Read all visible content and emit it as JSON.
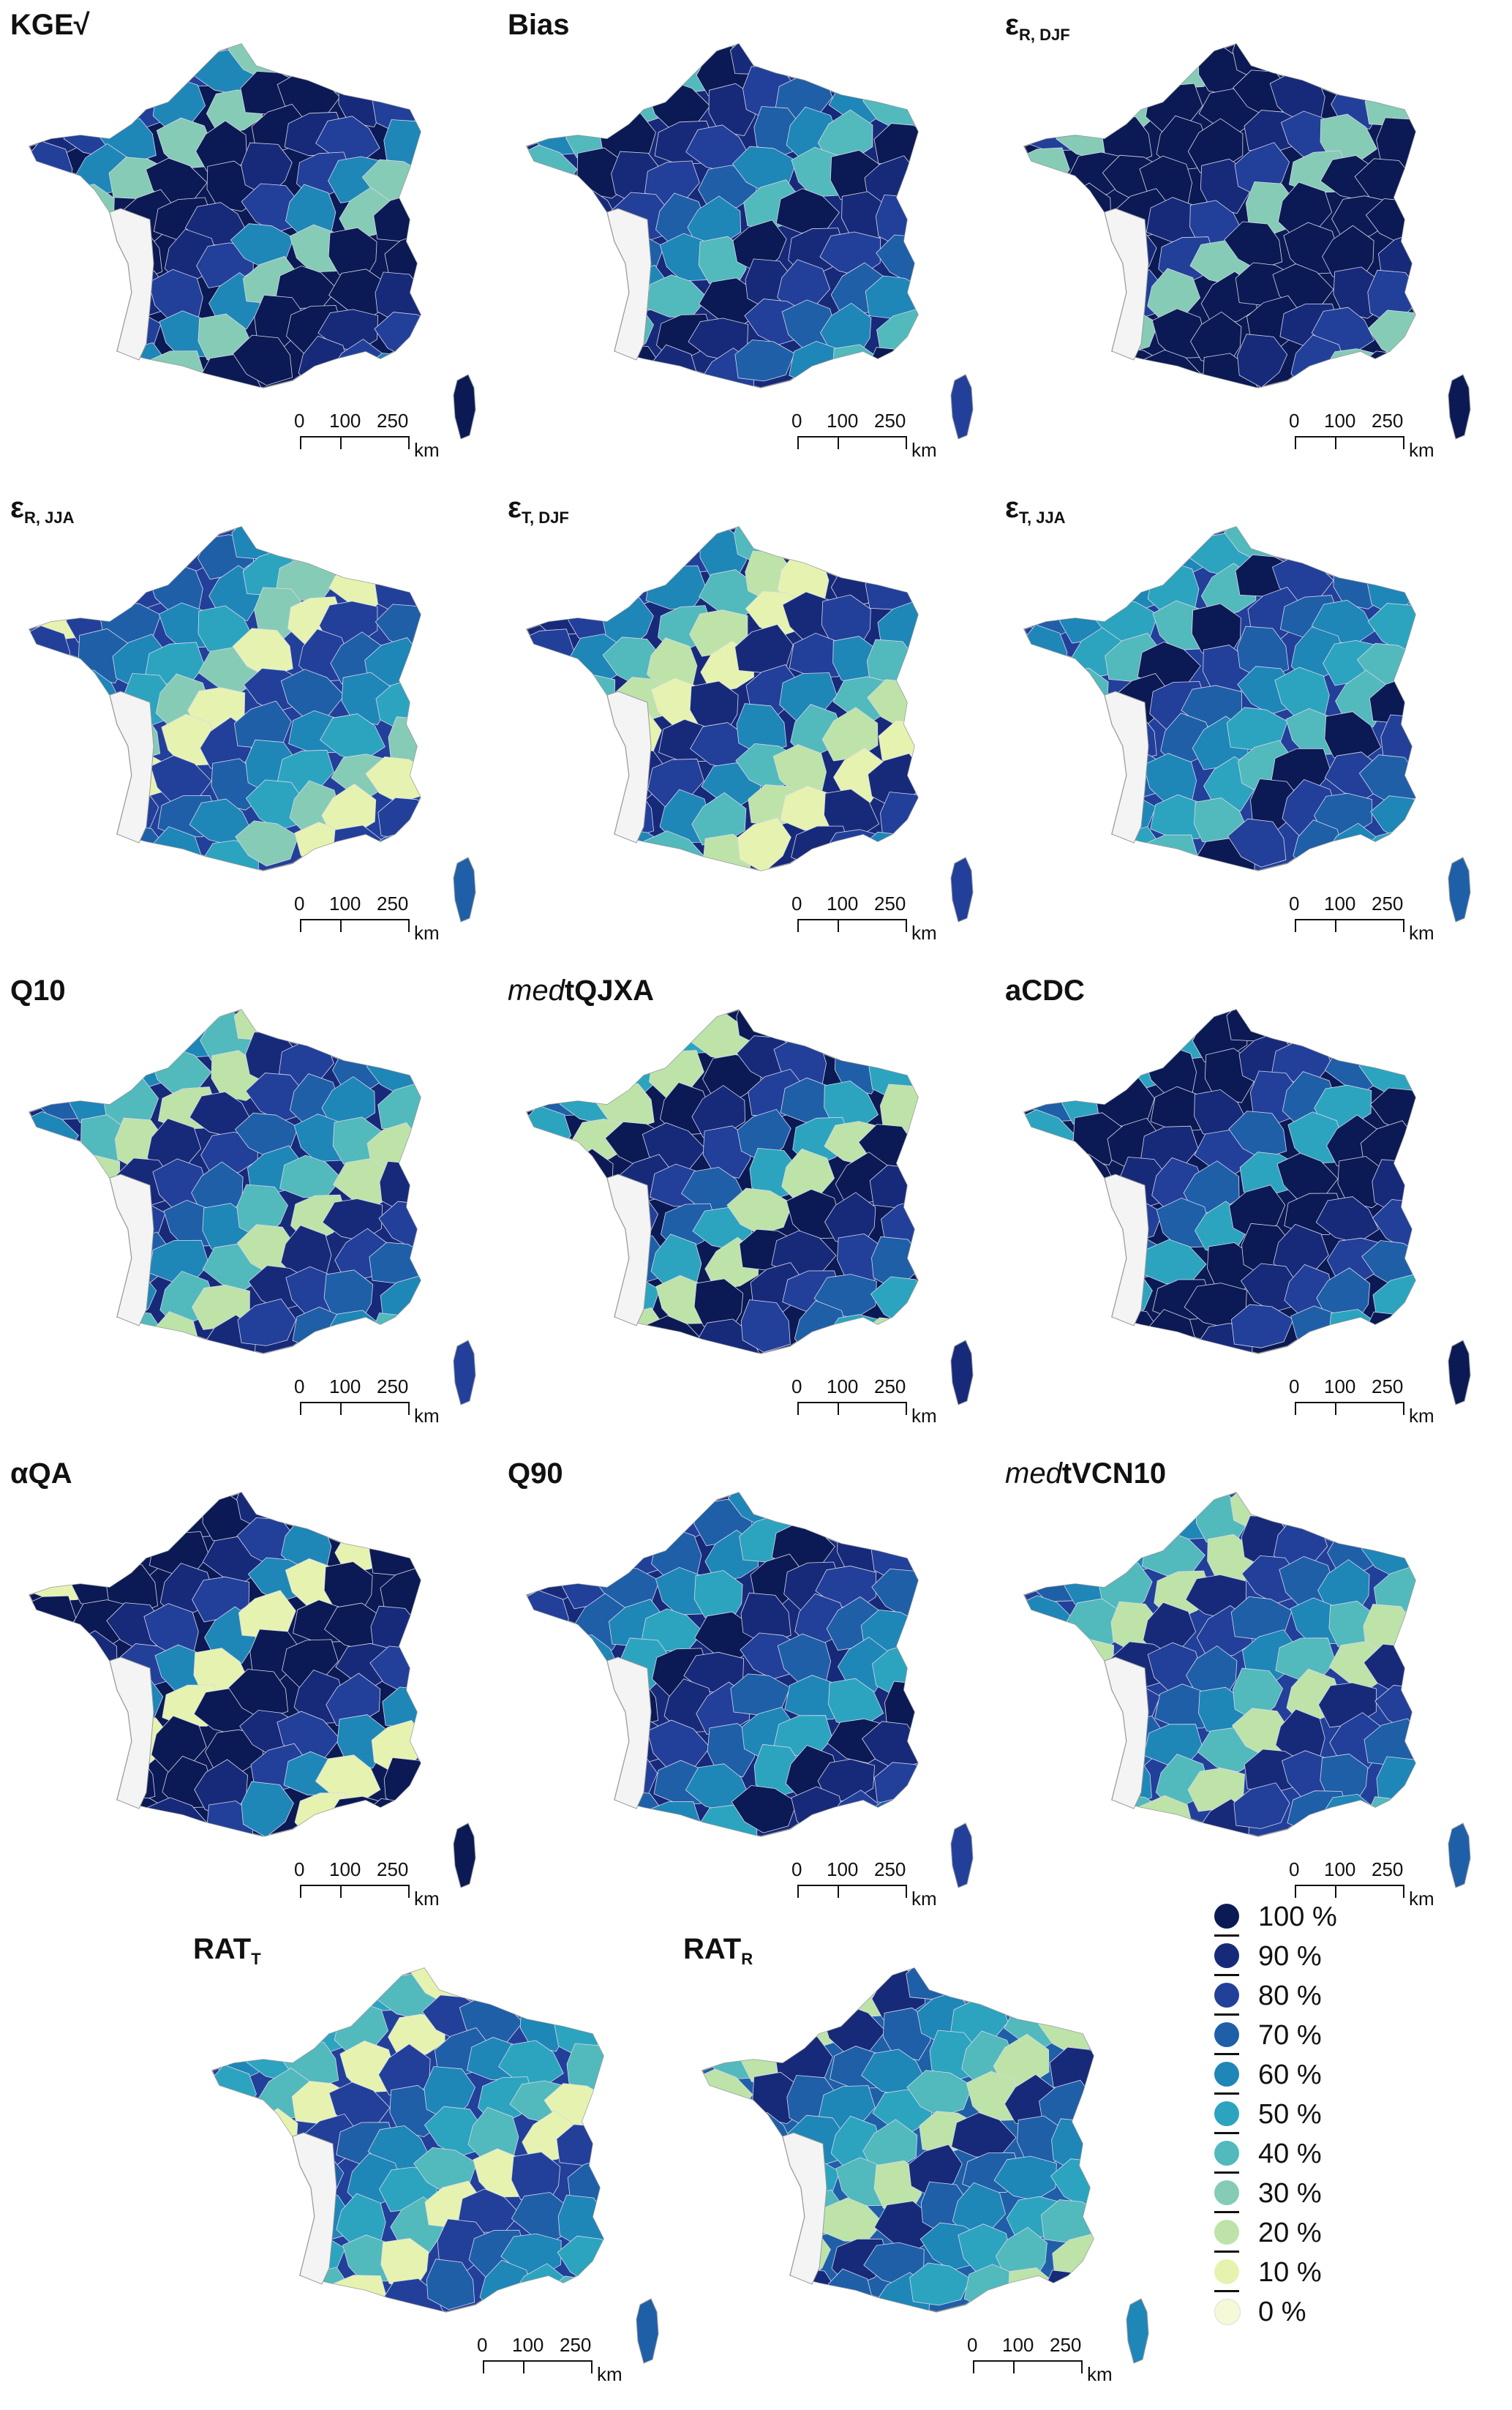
{
  "colors": {
    "c100": "#0b1a55",
    "c90": "#172a7a",
    "c80": "#22409a",
    "c70": "#1f5fa8",
    "c60": "#1f86b8",
    "c50": "#2ca4bf",
    "c40": "#52b9bd",
    "c30": "#86cbb6",
    "c20": "#bde3a9",
    "c10": "#e6f3b0",
    "c0": "#f5f9d8",
    "land": "#f4f4f4",
    "border": "#9a9a9a"
  },
  "panels": [
    {
      "id": "kge",
      "title": "KGE√",
      "title_italic": "",
      "title_sub": "",
      "palette": [
        "c100",
        "c100",
        "c90",
        "c80",
        "c60",
        "c30"
      ]
    },
    {
      "id": "bias",
      "title": "Bias",
      "title_italic": "",
      "title_sub": "",
      "palette": [
        "c90",
        "c80",
        "c70",
        "c60",
        "c40",
        "c100"
      ]
    },
    {
      "id": "erdjf",
      "title": "ε",
      "title_italic": "",
      "title_sub": "R, DJF",
      "palette": [
        "c100",
        "c100",
        "c100",
        "c90",
        "c80",
        "c30"
      ]
    },
    {
      "id": "erjja",
      "title": "ε",
      "title_italic": "",
      "title_sub": "R, JJA",
      "palette": [
        "c80",
        "c70",
        "c60",
        "c50",
        "c30",
        "c10"
      ]
    },
    {
      "id": "etdjf",
      "title": "ε",
      "title_italic": "",
      "title_sub": "T, DJF",
      "palette": [
        "c90",
        "c80",
        "c60",
        "c40",
        "c20",
        "c10"
      ]
    },
    {
      "id": "etjja",
      "title": "ε",
      "title_italic": "",
      "title_sub": "T, JJA",
      "palette": [
        "c80",
        "c70",
        "c60",
        "c50",
        "c40",
        "c100"
      ]
    },
    {
      "id": "q10",
      "title": "Q10",
      "title_italic": "",
      "title_sub": "",
      "palette": [
        "c90",
        "c80",
        "c70",
        "c60",
        "c40",
        "c20"
      ]
    },
    {
      "id": "medtqjxa",
      "title": "tQJXA",
      "title_italic": "med",
      "title_sub": "",
      "palette": [
        "c100",
        "c90",
        "c80",
        "c70",
        "c50",
        "c20"
      ]
    },
    {
      "id": "acdc",
      "title": "aCDC",
      "title_italic": "",
      "title_sub": "",
      "palette": [
        "c100",
        "c100",
        "c90",
        "c80",
        "c70",
        "c50"
      ]
    },
    {
      "id": "aqa",
      "title": "αQA",
      "title_italic": "",
      "title_sub": "",
      "palette": [
        "c100",
        "c100",
        "c90",
        "c80",
        "c60",
        "c10"
      ]
    },
    {
      "id": "q90",
      "title": "Q90",
      "title_italic": "",
      "title_sub": "",
      "palette": [
        "c90",
        "c80",
        "c70",
        "c60",
        "c50",
        "c100"
      ]
    },
    {
      "id": "medtvcn10",
      "title": "tVCN10",
      "title_italic": "med",
      "title_sub": "",
      "palette": [
        "c80",
        "c70",
        "c60",
        "c40",
        "c20",
        "c90"
      ]
    },
    {
      "id": "ratt",
      "title": "RAT",
      "title_italic": "",
      "title_sub": "T",
      "palette": [
        "c80",
        "c70",
        "c60",
        "c50",
        "c40",
        "c10"
      ]
    },
    {
      "id": "ratr",
      "title": "RAT",
      "title_italic": "",
      "title_sub": "R",
      "palette": [
        "c70",
        "c60",
        "c50",
        "c40",
        "c20",
        "c90"
      ]
    }
  ],
  "scalebar": {
    "labels": [
      "0",
      "100",
      "250"
    ],
    "unit": "km"
  },
  "legend": {
    "items": [
      {
        "label": "100 %",
        "color": "c100"
      },
      {
        "label": "90 %",
        "color": "c90"
      },
      {
        "label": "80 %",
        "color": "c80"
      },
      {
        "label": "70 %",
        "color": "c70"
      },
      {
        "label": "60 %",
        "color": "c60"
      },
      {
        "label": "50 %",
        "color": "c50"
      },
      {
        "label": "40 %",
        "color": "c40"
      },
      {
        "label": "30 %",
        "color": "c30"
      },
      {
        "label": "20 %",
        "color": "c20"
      },
      {
        "label": "10 %",
        "color": "c10"
      },
      {
        "label": "0 %",
        "color": "c0"
      }
    ]
  }
}
